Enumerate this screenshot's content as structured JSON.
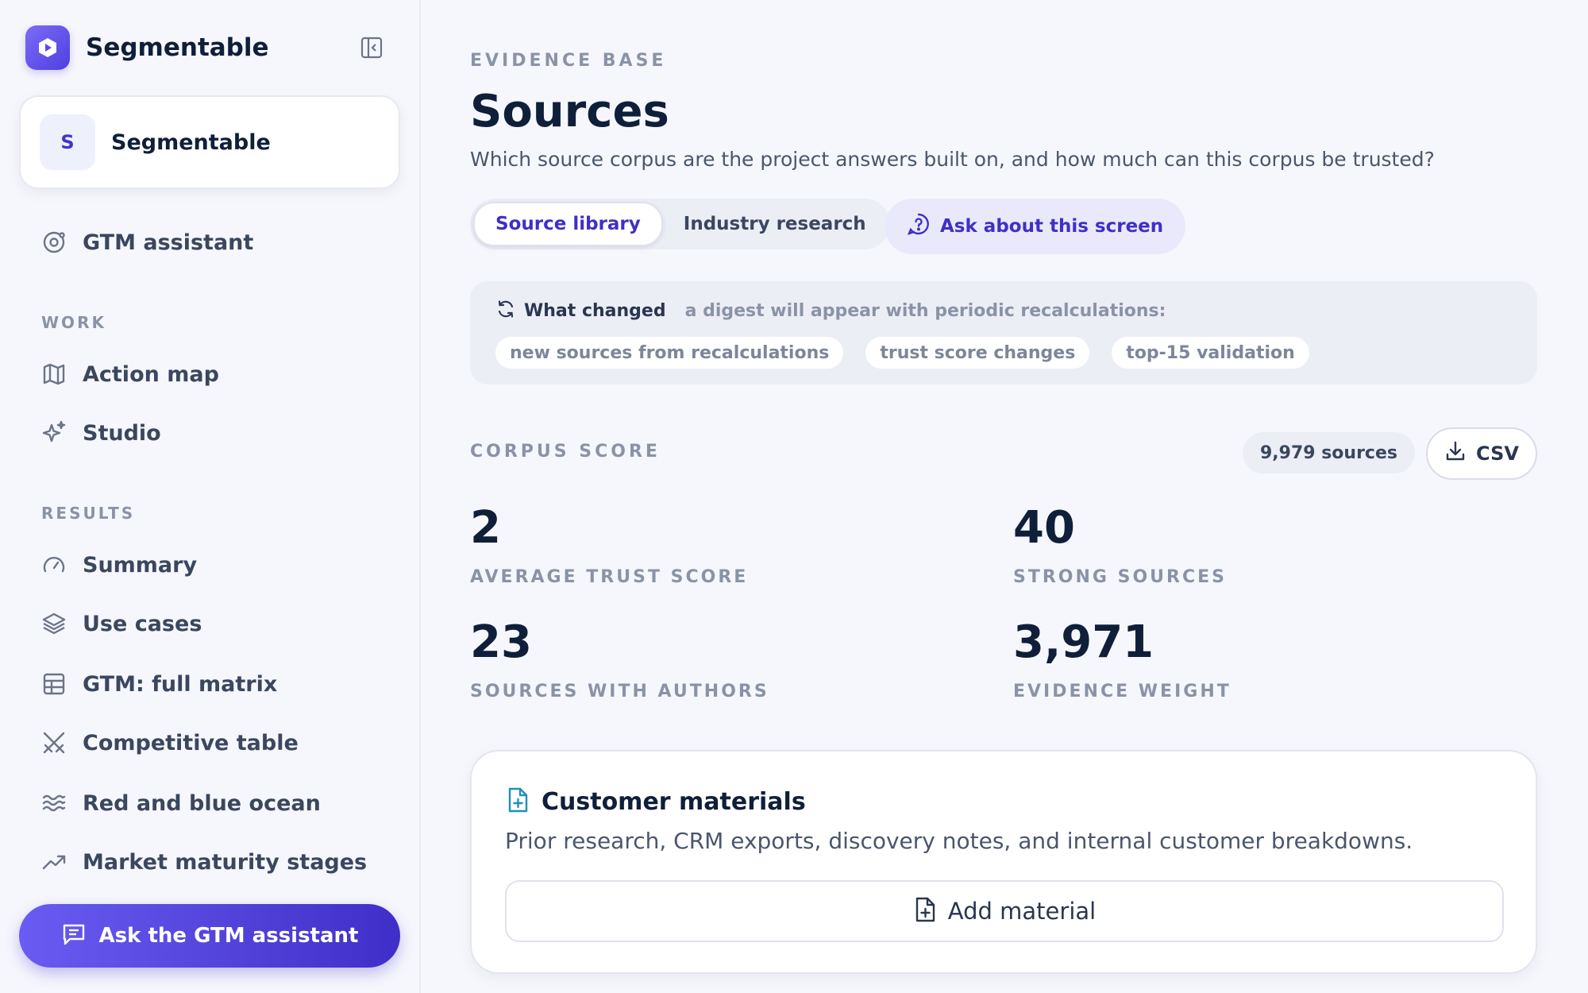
{
  "app": {
    "name": "Segmentable"
  },
  "workspace": {
    "avatar_letter": "S",
    "name": "Segmentable"
  },
  "sidebar": {
    "top_item": {
      "label": "GTM assistant",
      "icon": "assistant-icon"
    },
    "sections": [
      {
        "label": "WORK",
        "items": [
          {
            "label": "Action map",
            "icon": "map-icon"
          },
          {
            "label": "Studio",
            "icon": "sparkles-icon"
          }
        ]
      },
      {
        "label": "RESULTS",
        "items": [
          {
            "label": "Summary",
            "icon": "gauge-icon"
          },
          {
            "label": "Use cases",
            "icon": "layers-icon"
          },
          {
            "label": "GTM: full matrix",
            "icon": "grid-icon"
          },
          {
            "label": "Competitive table",
            "icon": "swords-icon"
          },
          {
            "label": "Red and blue ocean",
            "icon": "waves-icon"
          },
          {
            "label": "Market maturity stages",
            "icon": "trend-up-icon"
          }
        ]
      }
    ],
    "assistant_button": "Ask the GTM assistant"
  },
  "header": {
    "eyebrow": "EVIDENCE BASE",
    "title": "Sources",
    "subtitle": "Which source corpus are the project answers built on, and how much can this corpus be trusted?"
  },
  "tabs": [
    {
      "label": "Source library",
      "active": true
    },
    {
      "label": "Industry research",
      "active": false
    }
  ],
  "ask_screen_label": "Ask about this screen",
  "changes": {
    "title": "What changed",
    "description": "a digest will appear with periodic recalculations:",
    "chips": [
      "new sources from recalculations",
      "trust score changes",
      "top-15 validation"
    ]
  },
  "corpus": {
    "label": "CORPUS SCORE",
    "count": "9,979 sources",
    "csv_label": "CSV",
    "stats": [
      {
        "value": "2",
        "label": "AVERAGE TRUST SCORE"
      },
      {
        "value": "40",
        "label": "STRONG SOURCES"
      },
      {
        "value": "23",
        "label": "SOURCES WITH AUTHORS"
      },
      {
        "value": "3,971",
        "label": "EVIDENCE WEIGHT"
      }
    ]
  },
  "materials": {
    "title": "Customer materials",
    "description": "Prior research, CRM exports, discovery notes, and internal customer breakdowns.",
    "add_label": "Add material"
  },
  "colors": {
    "accent": "#4f3fe0",
    "accent_text": "#3f2fc8",
    "heading": "#0f1f3a",
    "muted": "#8a93a6",
    "file_icon": "#1f8fb8"
  }
}
